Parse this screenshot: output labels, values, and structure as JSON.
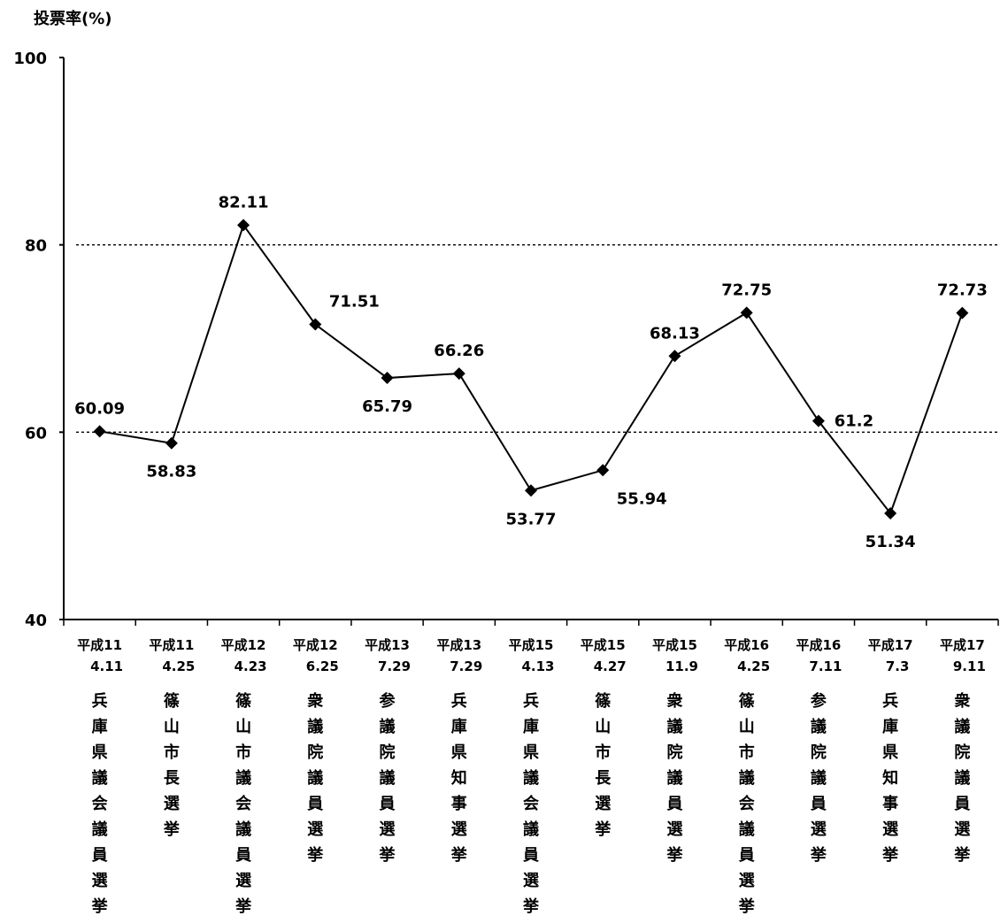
{
  "chart_data": {
    "type": "line",
    "ylabel": "投票率(%)",
    "ylim": [
      40,
      100
    ],
    "yticks": [
      "100",
      "80",
      "60",
      "40"
    ],
    "gridlines": [
      60,
      80
    ],
    "grid_style": "dotted",
    "marker": "diamond",
    "color": "#000000",
    "categories": [
      {
        "era": "平成11",
        "date": "4.11",
        "election": "兵庫県議会議員選挙"
      },
      {
        "era": "平成11",
        "date": "4.25",
        "election": "篠山市長選挙"
      },
      {
        "era": "平成12",
        "date": "4.23",
        "election": "篠山市議会議員選挙"
      },
      {
        "era": "平成12",
        "date": "6.25",
        "election": "衆議院議員選挙"
      },
      {
        "era": "平成13",
        "date": "7.29",
        "election": "参議院議員選挙"
      },
      {
        "era": "平成13",
        "date": "7.29",
        "election": "兵庫県知事選挙"
      },
      {
        "era": "平成15",
        "date": "4.13",
        "election": "兵庫県議会議員選挙"
      },
      {
        "era": "平成15",
        "date": "4.27",
        "election": "篠山市長選挙"
      },
      {
        "era": "平成15",
        "date": "11.9",
        "election": "衆議院議員選挙"
      },
      {
        "era": "平成16",
        "date": "4.25",
        "election": "篠山市議会議員選挙"
      },
      {
        "era": "平成16",
        "date": "7.11",
        "election": "参議院議員選挙"
      },
      {
        "era": "平成17",
        "date": "7.3",
        "election": "兵庫県知事選挙"
      },
      {
        "era": "平成17",
        "date": "9.11",
        "election": "衆議院議員選挙"
      }
    ],
    "values": [
      60.09,
      58.83,
      82.11,
      71.51,
      65.79,
      66.26,
      53.77,
      55.94,
      68.13,
      72.75,
      61.2,
      51.34,
      72.73
    ],
    "value_labels": [
      "60.09",
      "58.83",
      "82.11",
      "71.51",
      "65.79",
      "66.26",
      "53.77",
      "55.94",
      "68.13",
      "72.75",
      "61.2",
      "51.34",
      "72.73"
    ],
    "label_positions": [
      "above",
      "below",
      "above",
      "above-right",
      "below",
      "above",
      "below",
      "below-right",
      "above",
      "above",
      "right",
      "below",
      "above"
    ]
  }
}
